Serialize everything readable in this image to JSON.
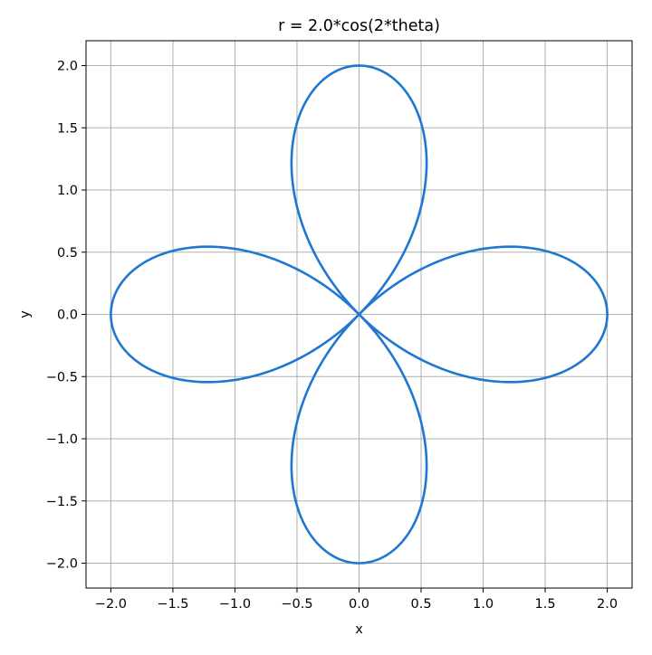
{
  "chart_data": {
    "type": "line",
    "title": "r = 2.0*cos(2*theta)",
    "xlabel": "x",
    "ylabel": "y",
    "xlim": [
      -2.2,
      2.2
    ],
    "ylim": [
      -2.2,
      2.2
    ],
    "grid": true,
    "x_ticks": [
      -2.0,
      -1.5,
      -1.0,
      -0.5,
      0.0,
      0.5,
      1.0,
      1.5,
      2.0
    ],
    "y_ticks": [
      -2.0,
      -1.5,
      -1.0,
      -0.5,
      0.0,
      0.5,
      1.0,
      1.5,
      2.0
    ],
    "x_tick_labels": [
      "−2.0",
      "−1.5",
      "−1.0",
      "−0.5",
      "0.0",
      "0.5",
      "1.0",
      "1.5",
      "2.0"
    ],
    "y_tick_labels": [
      "−2.0",
      "−1.5",
      "−1.0",
      "−0.5",
      "0.0",
      "0.5",
      "1.0",
      "1.5",
      "2.0"
    ],
    "curve": {
      "polar_equation": "r = 2.0*cos(2*theta)",
      "amplitude": 2.0,
      "frequency": 2,
      "theta_range": [
        0,
        6.283185307
      ],
      "samples": 721
    },
    "colors": {
      "line": "#1f77d2",
      "grid": "#b0b0b0",
      "axes": "#000000"
    }
  }
}
